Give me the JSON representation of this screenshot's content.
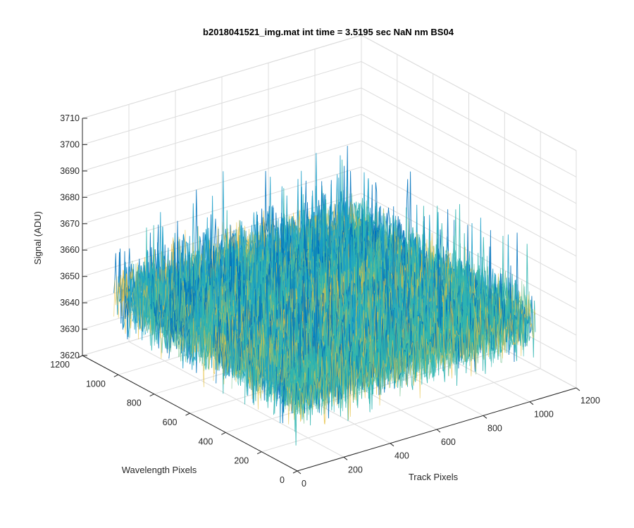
{
  "chart_data": {
    "type": "surface",
    "title": "b2018041521_img.mat int time = 3.5195 sec  NaN nm BS04",
    "xlabel": "Track Pixels",
    "ylabel": "Wavelength Pixels",
    "zlabel": "Signal (ADU)",
    "xlim": [
      0,
      1200
    ],
    "ylim": [
      0,
      1200
    ],
    "zlim": [
      3620,
      3710
    ],
    "xticks": [
      "0",
      "200",
      "400",
      "600",
      "800",
      "1000",
      "1200"
    ],
    "yticks": [
      "0",
      "200",
      "400",
      "600",
      "800",
      "1000",
      "1200"
    ],
    "zticks": [
      "3620",
      "3630",
      "3640",
      "3650",
      "3660",
      "3670",
      "3680",
      "3690",
      "3700",
      "3710"
    ],
    "data_extent": {
      "x": [
        0,
        1024
      ],
      "y": [
        0,
        1024
      ]
    },
    "signal_mean": 3650,
    "signal_range": [
      3625,
      3705
    ],
    "grid": true,
    "colormap": [
      "#0072bd",
      "#1b9ec9",
      "#2fb5b0",
      "#6cbf88",
      "#e6c03f"
    ]
  }
}
